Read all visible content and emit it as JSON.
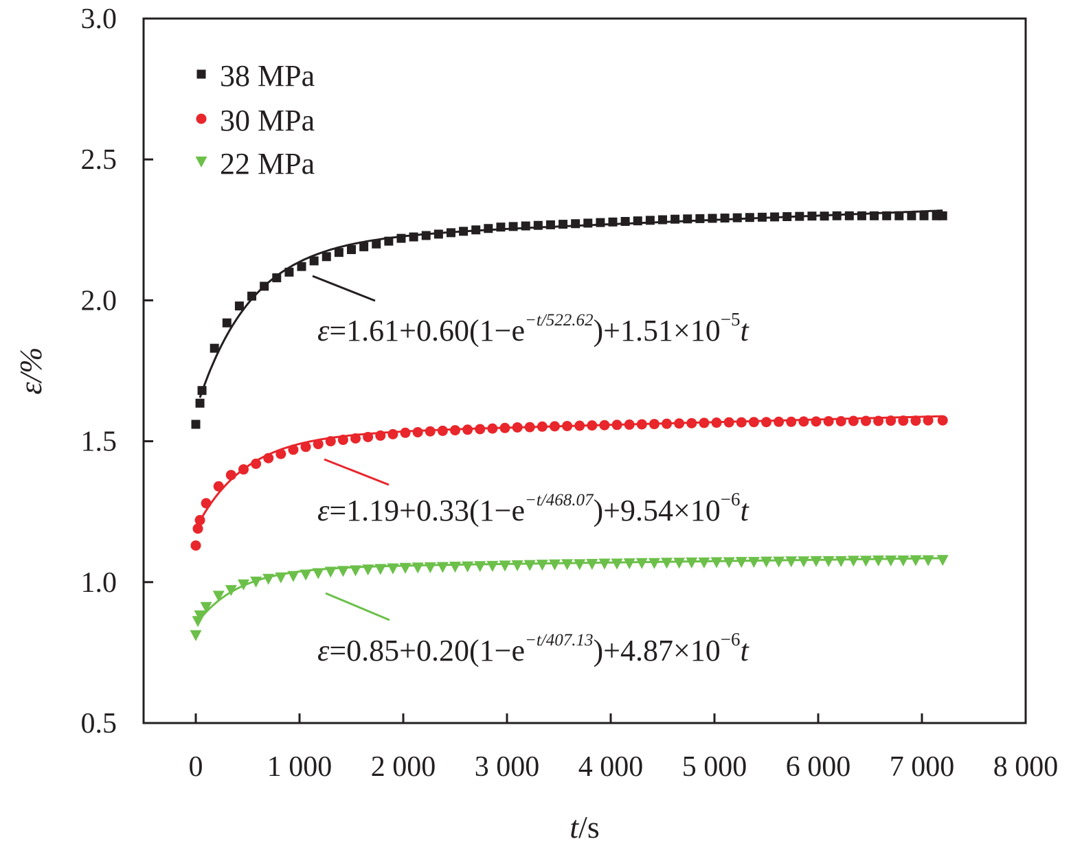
{
  "chart_data": {
    "type": "scatter",
    "xlabel": "t/s",
    "ylabel": "ε/%",
    "xlabel_var": "t",
    "xlabel_unit": "/s",
    "ylabel_var": "ε",
    "ylabel_unit": "/%",
    "xlim": [
      -500,
      8000
    ],
    "ylim": [
      0.5,
      3.0
    ],
    "x_ticks": [
      0,
      1000,
      2000,
      3000,
      4000,
      5000,
      6000,
      7000,
      8000
    ],
    "x_tick_labels": [
      "0",
      "1 000",
      "2 000",
      "3 000",
      "4 000",
      "5 000",
      "6 000",
      "7 000",
      "8 000"
    ],
    "y_ticks": [
      0.5,
      1.0,
      1.5,
      2.0,
      2.5,
      3.0
    ],
    "y_tick_labels": [
      "0.5",
      "1.0",
      "1.5",
      "2.0",
      "2.5",
      "3.0"
    ],
    "legend_position": "top-left",
    "series": [
      {
        "name": "38 MPa",
        "color": "#231f20",
        "marker": "square",
        "fit": {
          "e0": 1.61,
          "a": 0.6,
          "tau": 522.62,
          "b": 1.51e-05
        },
        "equation": {
          "eps": "ε",
          "main": "=1.61+0.60(1−e",
          "exp": "−t/522.62",
          "tail": ")+1.51×10",
          "pow": "−5",
          "var": "t"
        },
        "points": [
          [
            0,
            1.56
          ],
          [
            40,
            1.635
          ],
          [
            60,
            1.68
          ],
          [
            180,
            1.83
          ],
          [
            300,
            1.92
          ],
          [
            420,
            1.98
          ],
          [
            540,
            2.015
          ],
          [
            660,
            2.05
          ],
          [
            780,
            2.08
          ],
          [
            900,
            2.1
          ],
          [
            1020,
            2.12
          ],
          [
            1140,
            2.14
          ],
          [
            1260,
            2.155
          ],
          [
            1380,
            2.17
          ],
          [
            1500,
            2.18
          ],
          [
            1620,
            2.19
          ],
          [
            1740,
            2.2
          ],
          [
            1860,
            2.21
          ],
          [
            1980,
            2.22
          ],
          [
            2100,
            2.225
          ],
          [
            2220,
            2.23
          ],
          [
            2340,
            2.235
          ],
          [
            2460,
            2.24
          ],
          [
            2580,
            2.245
          ],
          [
            2700,
            2.25
          ],
          [
            2820,
            2.255
          ],
          [
            2940,
            2.26
          ],
          [
            3060,
            2.262
          ],
          [
            3180,
            2.264
          ],
          [
            3300,
            2.266
          ],
          [
            3420,
            2.268
          ],
          [
            3540,
            2.27
          ],
          [
            3660,
            2.272
          ],
          [
            3780,
            2.274
          ],
          [
            3900,
            2.276
          ],
          [
            4020,
            2.278
          ],
          [
            4140,
            2.28
          ],
          [
            4260,
            2.282
          ],
          [
            4380,
            2.284
          ],
          [
            4500,
            2.286
          ],
          [
            4620,
            2.288
          ],
          [
            4740,
            2.289
          ],
          [
            4860,
            2.29
          ],
          [
            4980,
            2.291
          ],
          [
            5100,
            2.292
          ],
          [
            5220,
            2.293
          ],
          [
            5340,
            2.294
          ],
          [
            5460,
            2.295
          ],
          [
            5580,
            2.296
          ],
          [
            5700,
            2.297
          ],
          [
            5820,
            2.298
          ],
          [
            5940,
            2.299
          ],
          [
            6060,
            2.299
          ],
          [
            6180,
            2.3
          ],
          [
            6300,
            2.3
          ],
          [
            6420,
            2.3
          ],
          [
            6540,
            2.3
          ],
          [
            6660,
            2.3
          ],
          [
            6780,
            2.3
          ],
          [
            6900,
            2.3
          ],
          [
            7020,
            2.3
          ],
          [
            7140,
            2.3
          ],
          [
            7200,
            2.3
          ]
        ]
      },
      {
        "name": "30 MPa",
        "color": "#e8262b",
        "marker": "circle",
        "fit": {
          "e0": 1.19,
          "a": 0.33,
          "tau": 468.07,
          "b": 9.54e-06
        },
        "equation": {
          "eps": "ε",
          "main": "=1.19+0.33(1−e",
          "exp": "−t/468.07",
          "tail": ")+9.54×10",
          "pow": "−6",
          "var": "t"
        },
        "points": [
          [
            0,
            1.13
          ],
          [
            20,
            1.19
          ],
          [
            40,
            1.22
          ],
          [
            100,
            1.28
          ],
          [
            220,
            1.34
          ],
          [
            340,
            1.38
          ],
          [
            460,
            1.4
          ],
          [
            580,
            1.42
          ],
          [
            700,
            1.44
          ],
          [
            820,
            1.455
          ],
          [
            940,
            1.47
          ],
          [
            1060,
            1.48
          ],
          [
            1180,
            1.49
          ],
          [
            1300,
            1.5
          ],
          [
            1420,
            1.505
          ],
          [
            1540,
            1.51
          ],
          [
            1660,
            1.515
          ],
          [
            1780,
            1.52
          ],
          [
            1900,
            1.525
          ],
          [
            2020,
            1.53
          ],
          [
            2140,
            1.532
          ],
          [
            2260,
            1.535
          ],
          [
            2380,
            1.537
          ],
          [
            2500,
            1.539
          ],
          [
            2620,
            1.541
          ],
          [
            2740,
            1.543
          ],
          [
            2860,
            1.545
          ],
          [
            2980,
            1.547
          ],
          [
            3100,
            1.549
          ],
          [
            3220,
            1.55
          ],
          [
            3340,
            1.552
          ],
          [
            3460,
            1.553
          ],
          [
            3580,
            1.554
          ],
          [
            3700,
            1.555
          ],
          [
            3820,
            1.556
          ],
          [
            3940,
            1.557
          ],
          [
            4060,
            1.558
          ],
          [
            4180,
            1.559
          ],
          [
            4300,
            1.56
          ],
          [
            4420,
            1.561
          ],
          [
            4540,
            1.562
          ],
          [
            4660,
            1.563
          ],
          [
            4780,
            1.564
          ],
          [
            4900,
            1.565
          ],
          [
            5020,
            1.566
          ],
          [
            5140,
            1.567
          ],
          [
            5260,
            1.567
          ],
          [
            5380,
            1.568
          ],
          [
            5500,
            1.568
          ],
          [
            5620,
            1.569
          ],
          [
            5740,
            1.569
          ],
          [
            5860,
            1.57
          ],
          [
            5980,
            1.57
          ],
          [
            6100,
            1.571
          ],
          [
            6220,
            1.571
          ],
          [
            6340,
            1.572
          ],
          [
            6460,
            1.572
          ],
          [
            6580,
            1.572
          ],
          [
            6700,
            1.573
          ],
          [
            6820,
            1.573
          ],
          [
            6940,
            1.573
          ],
          [
            7060,
            1.574
          ],
          [
            7200,
            1.574
          ]
        ]
      },
      {
        "name": "22 MPa",
        "color": "#6cc04a",
        "marker": "triangle-down",
        "fit": {
          "e0": 0.85,
          "a": 0.2,
          "tau": 407.13,
          "b": 4.87e-06
        },
        "equation": {
          "eps": "ε",
          "main": "=0.85+0.20(1−e",
          "exp": "−t/407.13",
          "tail": ")+4.87×10",
          "pow": "−6",
          "var": "t"
        },
        "points": [
          [
            0,
            0.81
          ],
          [
            20,
            0.86
          ],
          [
            40,
            0.88
          ],
          [
            100,
            0.91
          ],
          [
            220,
            0.95
          ],
          [
            340,
            0.97
          ],
          [
            460,
            0.99
          ],
          [
            580,
            1.0
          ],
          [
            700,
            1.01
          ],
          [
            820,
            1.015
          ],
          [
            940,
            1.02
          ],
          [
            1060,
            1.025
          ],
          [
            1180,
            1.03
          ],
          [
            1300,
            1.035
          ],
          [
            1420,
            1.038
          ],
          [
            1540,
            1.04
          ],
          [
            1660,
            1.043
          ],
          [
            1780,
            1.045
          ],
          [
            1900,
            1.047
          ],
          [
            2020,
            1.049
          ],
          [
            2140,
            1.05
          ],
          [
            2260,
            1.051
          ],
          [
            2380,
            1.052
          ],
          [
            2500,
            1.053
          ],
          [
            2620,
            1.054
          ],
          [
            2740,
            1.055
          ],
          [
            2860,
            1.056
          ],
          [
            2980,
            1.057
          ],
          [
            3100,
            1.058
          ],
          [
            3220,
            1.059
          ],
          [
            3340,
            1.06
          ],
          [
            3460,
            1.061
          ],
          [
            3580,
            1.062
          ],
          [
            3700,
            1.062
          ],
          [
            3820,
            1.063
          ],
          [
            3940,
            1.064
          ],
          [
            4060,
            1.064
          ],
          [
            4180,
            1.065
          ],
          [
            4300,
            1.066
          ],
          [
            4420,
            1.066
          ],
          [
            4540,
            1.067
          ],
          [
            4660,
            1.067
          ],
          [
            4780,
            1.068
          ],
          [
            4900,
            1.068
          ],
          [
            5020,
            1.069
          ],
          [
            5140,
            1.069
          ],
          [
            5260,
            1.07
          ],
          [
            5380,
            1.07
          ],
          [
            5500,
            1.071
          ],
          [
            5620,
            1.071
          ],
          [
            5740,
            1.072
          ],
          [
            5860,
            1.072
          ],
          [
            5980,
            1.073
          ],
          [
            6100,
            1.073
          ],
          [
            6220,
            1.073
          ],
          [
            6340,
            1.074
          ],
          [
            6460,
            1.074
          ],
          [
            6580,
            1.075
          ],
          [
            6700,
            1.075
          ],
          [
            6820,
            1.075
          ],
          [
            6940,
            1.076
          ],
          [
            7060,
            1.076
          ],
          [
            7200,
            1.077
          ]
        ]
      }
    ]
  }
}
